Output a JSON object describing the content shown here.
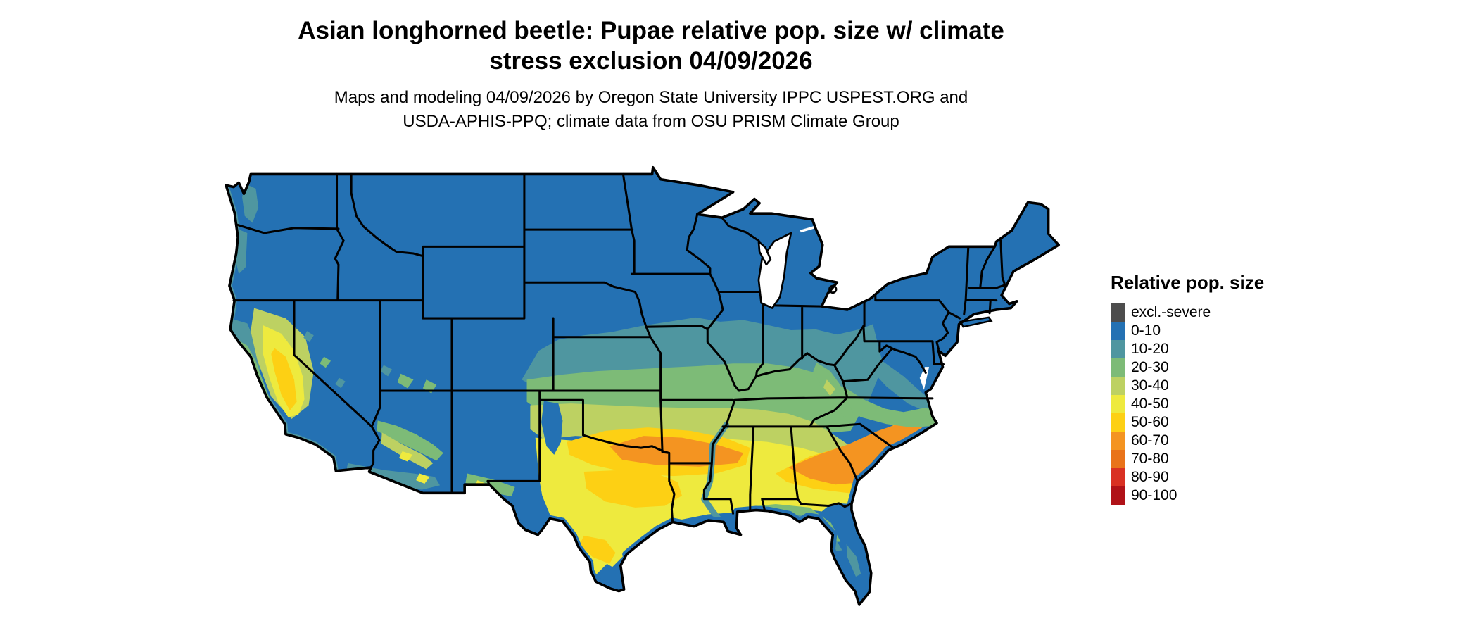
{
  "title": {
    "line1": "Asian longhorned beetle: Pupae relative pop. size w/ climate",
    "line2": "stress exclusion 04/09/2026"
  },
  "subtitle": {
    "line1": "Maps and modeling 04/09/2026 by Oregon State University IPPC USPEST.ORG and",
    "line2": "USDA-APHIS-PPQ; climate data from OSU PRISM Climate Group"
  },
  "map": {
    "name": "continental-us-raster-map"
  },
  "legend": {
    "title": "Relative pop. size",
    "entries": [
      {
        "label": "excl.-severe",
        "color": "#4d4d4d"
      },
      {
        "label": "0-10",
        "color": "#2471b3"
      },
      {
        "label": "10-20",
        "color": "#4f96a0"
      },
      {
        "label": "20-30",
        "color": "#7dbb77"
      },
      {
        "label": "30-40",
        "color": "#bdd162"
      },
      {
        "label": "40-50",
        "color": "#eeea3e"
      },
      {
        "label": "50-60",
        "color": "#fdd014"
      },
      {
        "label": "60-70",
        "color": "#f49421"
      },
      {
        "label": "70-80",
        "color": "#e9731a"
      },
      {
        "label": "80-90",
        "color": "#d93123"
      },
      {
        "label": "90-100",
        "color": "#b01218"
      }
    ]
  }
}
